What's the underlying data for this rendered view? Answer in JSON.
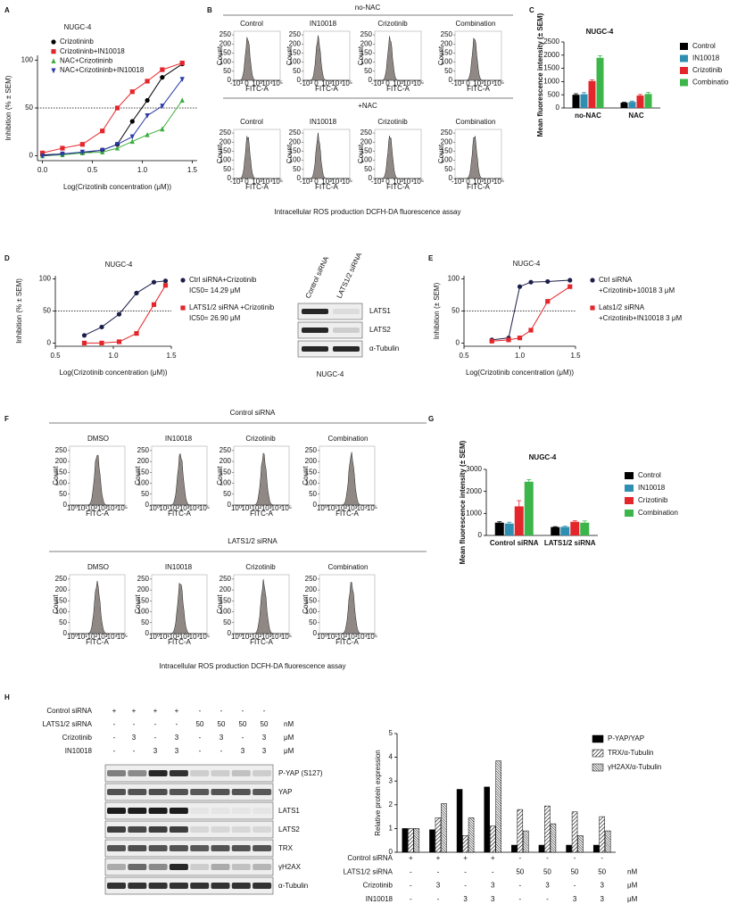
{
  "panel_labels": [
    "A",
    "B",
    "C",
    "D",
    "E",
    "F",
    "G",
    "H"
  ],
  "chart_data": [
    {
      "type": "line",
      "title": "NUGC-4",
      "xlabel": "Log(Crizotinib concentration (μM))",
      "ylabel": "Inhibition (% ± SEM)",
      "x": [
        0,
        0.2,
        0.4,
        0.6,
        0.75,
        0.9,
        1.05,
        1.2,
        1.4
      ],
      "xlim": [
        -0.05,
        1.55
      ],
      "ylim": [
        -5,
        105
      ],
      "xticks": [
        {
          "value": 0,
          "label": "0.0"
        },
        0.5,
        {
          "value": 1,
          "label": "1.0"
        },
        1.5
      ],
      "yticks": [
        0,
        50,
        100
      ],
      "hline": 50,
      "series": [
        {
          "name": "Crizotininb",
          "color": "#000000",
          "marker": "circle",
          "values": [
            1,
            2,
            3,
            6,
            12,
            36,
            58,
            82,
            96
          ]
        },
        {
          "name": "Crizotininb+IN10018",
          "color": "#e3262b",
          "marker": "square",
          "values": [
            3,
            8,
            12,
            26,
            50,
            67,
            78,
            90,
            97
          ]
        },
        {
          "name": "NAC+Crizotininb",
          "color": "#3cae3f",
          "marker": "triangle",
          "values": [
            0,
            1,
            3,
            4,
            8,
            15,
            22,
            28,
            58
          ]
        },
        {
          "name": "NAC+Crizotininb+IN10018",
          "color": "#2a3aa8",
          "marker": "triangle-down",
          "values": [
            0,
            2,
            4,
            6,
            12,
            20,
            42,
            52,
            80
          ]
        }
      ]
    },
    {
      "type": "bar",
      "title": "NUGC-4",
      "ylabel": "Mean fluorescence intensity (± SEM)",
      "categories": [
        "no-NAC",
        "NAC"
      ],
      "ylim": [
        0,
        2500
      ],
      "yticks": [
        0,
        500,
        1000,
        1500,
        2000,
        2500
      ],
      "series": [
        {
          "name": "Control",
          "color": "#000000",
          "values": [
            500,
            200
          ],
          "errors": [
            40,
            20
          ]
        },
        {
          "name": "IN10018",
          "color": "#2f8fb3",
          "values": [
            520,
            230
          ],
          "errors": [
            60,
            30
          ]
        },
        {
          "name": "Crizotinib",
          "color": "#e3262b",
          "values": [
            1020,
            470
          ],
          "errors": [
            40,
            40
          ]
        },
        {
          "name": "Combination",
          "color": "#3cb54a",
          "values": [
            1900,
            530
          ],
          "errors": [
            80,
            60
          ]
        }
      ]
    },
    {
      "type": "line",
      "title": "NUGC-4",
      "xlabel": "Log(Crizotinib concentration (μM))",
      "ylabel": "Inhibition (% ± SEM)",
      "x": [
        0.75,
        0.9,
        1.05,
        1.2,
        1.35,
        1.45
      ],
      "xlim": [
        0.5,
        1.5
      ],
      "ylim": [
        -5,
        105
      ],
      "xticks": [
        0.5,
        {
          "value": 1,
          "label": "1.0"
        },
        1.5
      ],
      "yticks": [
        0,
        50,
        100
      ],
      "hline": 50,
      "series": [
        {
          "name": "Ctrl siRNA+Crizotinib",
          "note": "IC50= 14.29 μM",
          "color": "#1c1f4a",
          "marker": "circle",
          "values": [
            12,
            25,
            45,
            78,
            95,
            97
          ]
        },
        {
          "name": "LATS1/2 siRNA +Crizotinib",
          "note": "IC50= 26.90 μM",
          "color": "#e3262b",
          "marker": "square",
          "values": [
            0,
            0,
            2,
            15,
            60,
            90
          ]
        }
      ]
    },
    {
      "type": "line",
      "title": "NUGC-4",
      "xlabel": "Log(Crizotinib concentration (μM))",
      "ylabel": "Inhibition (± SEM)",
      "x": [
        0.75,
        0.9,
        1.0,
        1.1,
        1.25,
        1.45
      ],
      "xlim": [
        0.5,
        1.5
      ],
      "ylim": [
        -5,
        105
      ],
      "xticks": [
        0.5,
        {
          "value": 1,
          "label": "1.0"
        },
        1.5
      ],
      "yticks": [
        0,
        50,
        100
      ],
      "hline": 50,
      "series": [
        {
          "name": "Ctrl siRNA",
          "note": "+Crizotinib+10018 3 μM",
          "color": "#1c1f4a",
          "marker": "circle",
          "values": [
            5,
            8,
            88,
            95,
            96,
            98
          ]
        },
        {
          "name": "Lats1/2 siRNA",
          "note": "+Crizotinib+IN10018 3 μM",
          "color": "#e3262b",
          "marker": "square",
          "values": [
            3,
            5,
            8,
            20,
            65,
            88
          ]
        }
      ]
    },
    {
      "type": "bar",
      "title": "NUGC-4",
      "ylabel": "Mean fluorescence intensity (± SEM)",
      "categories": [
        "Control siRNA",
        "LATS1/2 siRNA"
      ],
      "ylim": [
        0,
        3000
      ],
      "yticks": [
        0,
        1000,
        2000,
        3000
      ],
      "series": [
        {
          "name": "Control",
          "color": "#000000",
          "values": [
            580,
            380
          ],
          "errors": [
            40,
            20
          ]
        },
        {
          "name": "IN10018",
          "color": "#2f8fb3",
          "values": [
            540,
            390
          ],
          "errors": [
            60,
            30
          ]
        },
        {
          "name": "Crizotinib",
          "color": "#e3262b",
          "values": [
            1320,
            620
          ],
          "errors": [
            260,
            50
          ]
        },
        {
          "name": "Combination",
          "color": "#3cb54a",
          "values": [
            2440,
            580
          ],
          "errors": [
            100,
            80
          ]
        }
      ]
    },
    {
      "type": "bar",
      "ylabel": "Relative protein  expression",
      "categories": [
        null,
        null,
        null,
        null,
        null,
        null,
        null,
        null
      ],
      "ylim": [
        0,
        5
      ],
      "yticks": [
        0,
        1,
        2,
        3,
        4,
        5
      ],
      "series": [
        {
          "name": "P-YAP/YAP",
          "color": "#000000",
          "pattern": "solid",
          "values": [
            1,
            0.95,
            2.65,
            2.75,
            0.3,
            0.3,
            0.3,
            0.3
          ]
        },
        {
          "name": "TRX/α-Tubulin",
          "color": "#000000",
          "pattern": "hatch",
          "values": [
            1,
            1.45,
            0.7,
            1.1,
            1.8,
            1.95,
            1.7,
            1.5
          ]
        },
        {
          "name": "γH2AX/α-Tubulin",
          "color": "#000000",
          "pattern": "dense",
          "values": [
            1,
            2.05,
            1.45,
            3.85,
            0.9,
            1.2,
            0.7,
            0.9
          ]
        }
      ]
    }
  ],
  "flow_b": {
    "ylabel": "Count",
    "xlabel": "FITC-A",
    "ylim": [
      0,
      270
    ],
    "yticks": [
      0,
      50,
      100,
      150,
      200,
      250
    ],
    "xtick_labels": [
      "-10³",
      "0",
      "10³",
      "10⁴",
      "10⁵"
    ],
    "groups": [
      {
        "title": "no-NAC",
        "columns": [
          "Control",
          "IN10018",
          "Crizotinib",
          "Combination"
        ]
      },
      {
        "title": "+NAC",
        "columns": [
          "Control",
          "IN10018",
          "Crizotinib",
          "Combination"
        ]
      }
    ],
    "caption": "Intracellular ROS production DCFH-DA fluorescence assay"
  },
  "blot_d": {
    "lanes": [
      "Control siRNA",
      "LATS1/2 siRNA"
    ],
    "rows": [
      "LATS1",
      "LATS2",
      "α-Tubulin"
    ],
    "caption": "NUGC-4"
  },
  "flow_f": {
    "ylabel": "Count",
    "xlabel": "FITC-A",
    "ylim": [
      0,
      270
    ],
    "yticks": [
      0,
      50,
      100,
      150,
      200,
      250
    ],
    "xtick_labels": [
      "10⁰",
      "10¹",
      "10²",
      "10³",
      "10⁴",
      "10⁵"
    ],
    "groups": [
      {
        "title": "Control siRNA",
        "columns": [
          "DMSO",
          "IN10018",
          "Crizotinib",
          "Combination"
        ]
      },
      {
        "title": "LATS1/2 siRNA",
        "columns": [
          "DMSO",
          "IN10018",
          "Crizotinib",
          "Combination"
        ]
      }
    ],
    "caption": "Intracellular ROS production DCFH-DA fluorescence assay"
  },
  "conditions_h": [
    {
      "label": "Control siRNA",
      "values": [
        "+",
        "+",
        "+",
        "+",
        "-",
        "-",
        "-",
        "-"
      ]
    },
    {
      "label": "LATS1/2 siRNA",
      "values": [
        "-",
        "-",
        "-",
        "-",
        "50",
        "50",
        "50",
        "50"
      ],
      "unit": "nM"
    },
    {
      "label": "Crizotinib",
      "values": [
        "-",
        "3",
        "-",
        "3",
        "-",
        "3",
        "-",
        "3"
      ],
      "unit": "μM"
    },
    {
      "label": "IN10018",
      "values": [
        "-",
        "-",
        "3",
        "3",
        "-",
        "-",
        "3",
        "3"
      ],
      "unit": "μM"
    }
  ],
  "blot_h": {
    "rows": [
      "P-YAP (S127)",
      "YAP",
      "LATS1",
      "LATS2",
      "TRX",
      "γH2AX",
      "α-Tubulin"
    ]
  }
}
